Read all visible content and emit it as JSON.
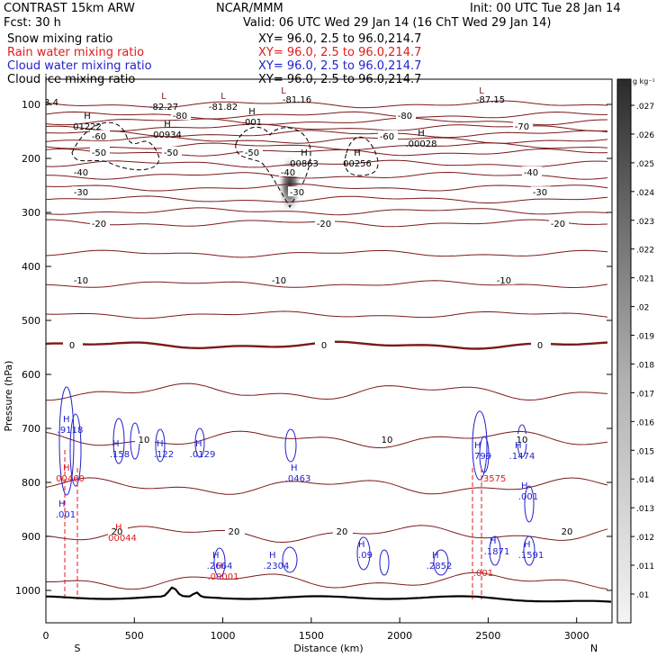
{
  "header": {
    "left_line1": "CONTRAST 15km ARW",
    "center_line1": "NCAR/MMM",
    "right_line1": "Init: 00 UTC Tue 28 Jan 14",
    "left_line2": "Fcst:    30 h",
    "right_line2": "Valid: 06 UTC Wed 29 Jan 14 (16 ChT Wed 29 Jan 14)"
  },
  "fields": [
    {
      "label": "Snow mixing ratio",
      "xy": "",
      "color": "#000000"
    },
    {
      "label": "Rain water mixing ratio",
      "xy": "XY=  96.0,  2.5 to  96.0,214.7",
      "color": "#e31a1c"
    },
    {
      "label": "Cloud water mixing ratio",
      "xy": "XY=  96.0,  2.5 to  96.0,214.7",
      "color": "#1f1fd0"
    },
    {
      "label": "Cloud ice mixing ratio",
      "xy": "XY=  96.0,  2.5 to  96.0,214.7",
      "color": "#000000"
    }
  ],
  "xy_black": "XY=  96.0,  2.5 to  96.0,214.7",
  "chart_data": {
    "type": "contour",
    "xlabel": "Distance (km)",
    "ylabel": "Pressure (hPa)",
    "xlim": [
      0,
      3200
    ],
    "ylim": [
      1050,
      50
    ],
    "xticks": [
      0,
      500,
      1000,
      1500,
      2000,
      2500,
      3000
    ],
    "yticks": [
      100,
      200,
      300,
      400,
      500,
      600,
      700,
      800,
      900,
      1000
    ],
    "endpoints": {
      "left": "S",
      "right": "N"
    },
    "temperature_contours": {
      "units": "C",
      "color": "#7b1a1a",
      "levels": [
        {
          "value": -80,
          "pressure": 120,
          "labels": [
            "-80",
            "-80"
          ]
        },
        {
          "value": -70,
          "pressure": 140,
          "labels": [
            "-70"
          ]
        },
        {
          "value": -60,
          "pressure": 158,
          "labels": [
            "-60",
            "-60"
          ]
        },
        {
          "value": -50,
          "pressure": 188,
          "labels": [
            "-50",
            "-50",
            "-50"
          ]
        },
        {
          "value": -40,
          "pressure": 225,
          "labels": [
            "-40",
            "-40",
            "-40"
          ]
        },
        {
          "value": -30,
          "pressure": 262,
          "labels": [
            "-30",
            "-30",
            "-30"
          ]
        },
        {
          "value": -20,
          "pressure": 320,
          "labels": [
            "-20",
            "-20",
            "-20"
          ]
        },
        {
          "value": -10,
          "pressure": 425,
          "labels": [
            "-10",
            "-10",
            "-10"
          ]
        },
        {
          "value": 0,
          "pressure": 545,
          "labels": [
            "0",
            "0",
            "0"
          ]
        },
        {
          "value": 10,
          "pressure": 720,
          "labels": [
            "10",
            "10",
            "10"
          ]
        },
        {
          "value": 20,
          "pressure": 890,
          "labels": [
            "20",
            "20",
            "20",
            "20"
          ]
        }
      ],
      "minima_labels": [
        "-82.27",
        "-81.82",
        "-81.16",
        "-87.15",
        "3.4"
      ]
    },
    "cloud_ice_maxima": [
      "01222",
      "00934",
      ".001",
      "00863",
      "00256",
      ".00028"
    ],
    "cloud_water_maxima": [
      ".9118",
      ".158",
      ".122",
      ".0129",
      ".0463",
      ".799",
      ".1474",
      ".001",
      ".001",
      ".2664",
      ".2304",
      ".09",
      ".2852",
      ".1871",
      ".1591"
    ],
    "rain_water_maxima": [
      "00460",
      "00044",
      ".00001",
      ".3575",
      ".001"
    ],
    "snow_shading": {
      "center_km": 1360,
      "pressure_range": [
        190,
        300
      ],
      "peak": 0.027
    },
    "colorbar": {
      "units": "g kg⁻¹",
      "min": 0.01,
      "max": 0.027,
      "labels": [
        ".027",
        ".026",
        ".025",
        ".024",
        ".023",
        ".022",
        ".021",
        ".02",
        ".019",
        ".018",
        ".017",
        ".016",
        ".015",
        ".014",
        ".013",
        ".012",
        ".011",
        ".01"
      ]
    },
    "h_markers": [
      "H",
      "L"
    ]
  }
}
